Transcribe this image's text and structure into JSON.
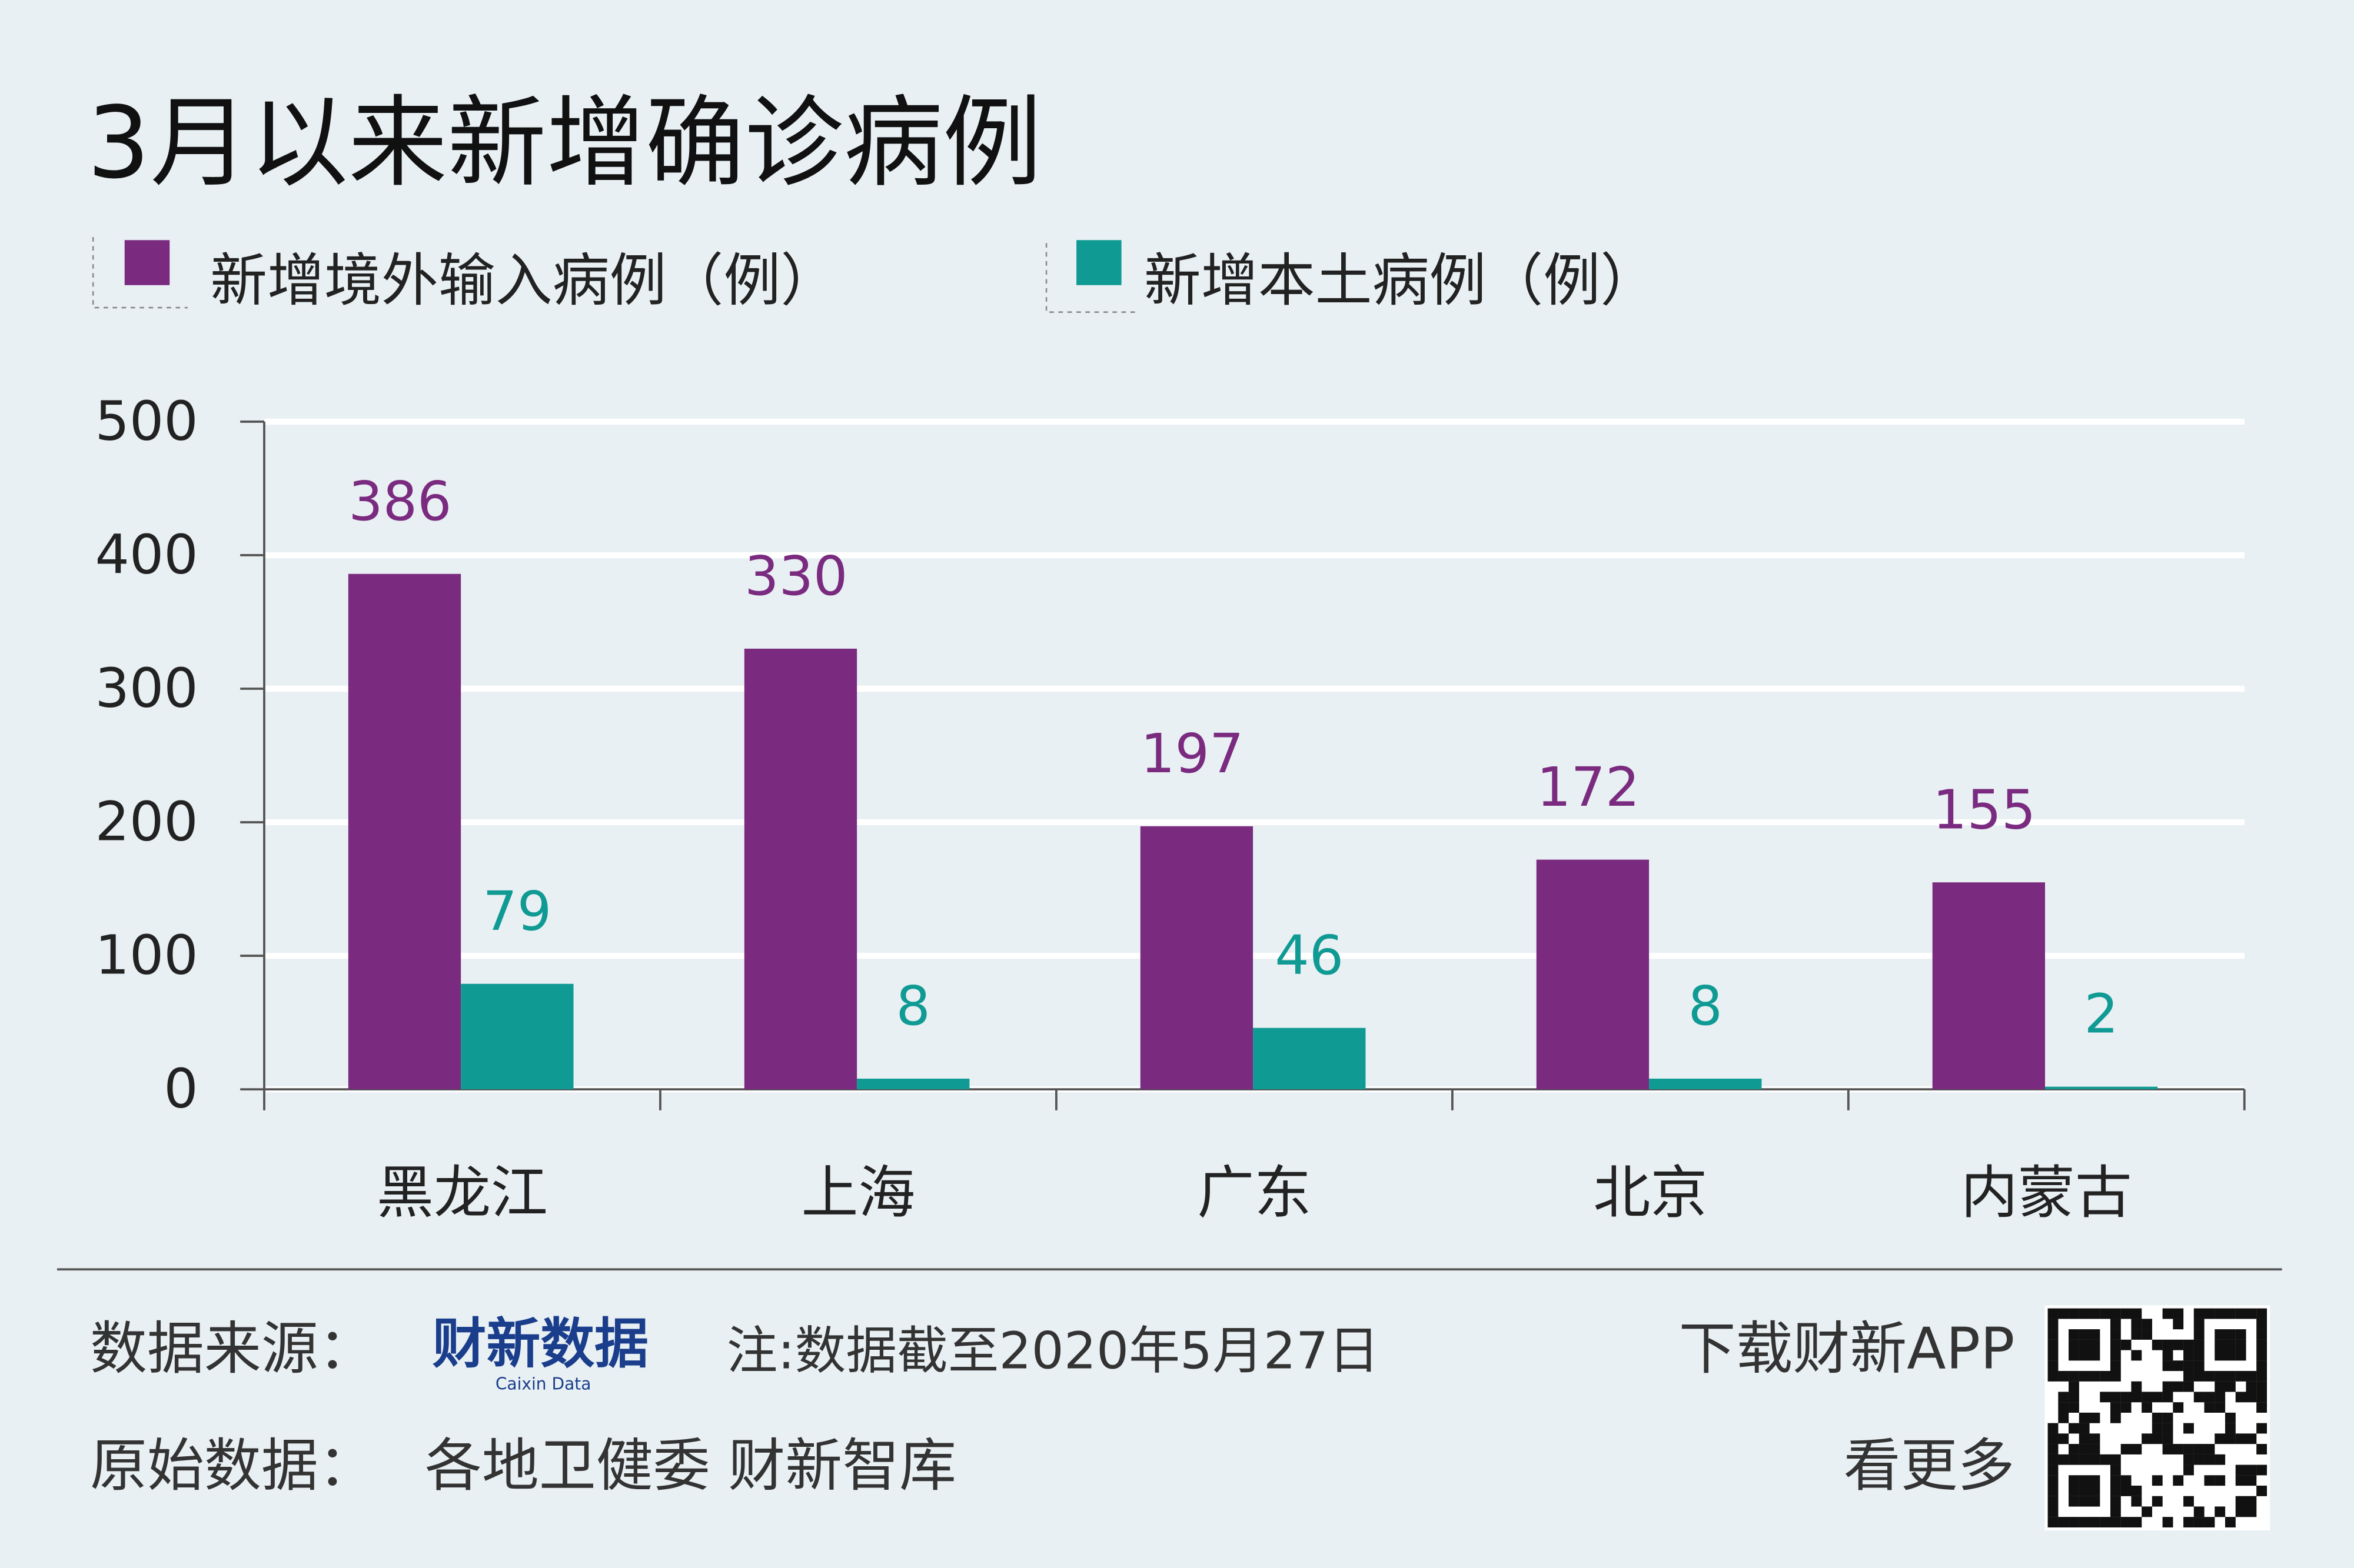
{
  "chart_data": {
    "type": "bar",
    "title": "3月以来新增确诊病例",
    "categories": [
      "黑龙江",
      "上海",
      "广东",
      "北京",
      "内蒙古"
    ],
    "series": [
      {
        "name": "新增境外输入病例（例）",
        "color": "#7a2b80",
        "values": [
          386,
          330,
          197,
          172,
          155
        ]
      },
      {
        "name": "新增本土病例（例）",
        "color": "#109a94",
        "values": [
          79,
          8,
          46,
          8,
          2
        ]
      }
    ],
    "ylim": [
      0,
      500
    ],
    "yticks": [
      0,
      100,
      200,
      300,
      400,
      500
    ],
    "grid": true
  },
  "footer": {
    "source_label": "数据来源：",
    "logo": "财新数据",
    "logo_sub": "Caixin Data",
    "note": "注:数据截至2020年5月27日",
    "raw_label": "原始数据：",
    "raw_source": "各地卫健委 财新智库",
    "app_line1": "下载财新APP",
    "app_line2": "看更多"
  }
}
